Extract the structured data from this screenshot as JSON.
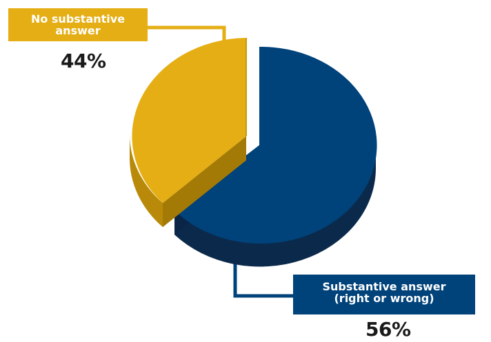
{
  "chart_data": {
    "type": "pie",
    "slices": [
      {
        "label_lines": [
          "Substantive answer",
          "(right or wrong)"
        ],
        "value": 56,
        "value_label": "56%",
        "color": "#00427A",
        "side_color": "#0B2A4B"
      },
      {
        "label_lines": [
          "No substantive",
          "answer"
        ],
        "value": 44,
        "value_label": "44%",
        "color": "#E4AE14",
        "side_color": "#B98A09"
      }
    ],
    "three_d": true,
    "exploded_slice": "No substantive answer",
    "legend": "none"
  }
}
